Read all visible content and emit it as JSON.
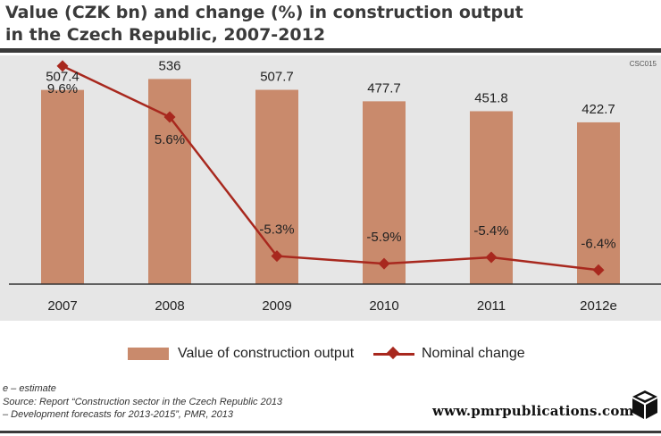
{
  "header": {
    "title_line1": "Value (CZK bn) and change (%) in construction output",
    "title_line2": "in the Czech Republic, 2007-2012",
    "code": "CSC015"
  },
  "chart_data": {
    "type": "bar",
    "categories": [
      "2007",
      "2008",
      "2009",
      "2010",
      "2011",
      "2012e"
    ],
    "series": [
      {
        "name": "Value of construction output",
        "type": "bar",
        "values": [
          507.4,
          536,
          507.7,
          477.7,
          451.8,
          422.7
        ],
        "labels": [
          "507.4",
          "536",
          "507.7",
          "477.7",
          "451.8",
          "422.7"
        ],
        "color": "#c98a6c"
      },
      {
        "name": "Nominal change",
        "type": "line",
        "values": [
          9.6,
          5.6,
          -5.3,
          -5.9,
          -5.4,
          -6.4
        ],
        "labels": [
          "9.6%",
          "5.6%",
          "-5.3%",
          "-5.9%",
          "-5.4%",
          "-6.4%"
        ],
        "color": "#a8281e",
        "marker": "diamond"
      }
    ],
    "bar_axis_range": [
      0,
      600
    ],
    "line_axis_range": [
      -7.5,
      10.5
    ],
    "grid": false,
    "legend_position": "bottom"
  },
  "legend": {
    "bar_label": "Value of construction output",
    "line_label": "Nominal change"
  },
  "footer": {
    "note": "e – estimate",
    "source_line1": "Source: Report “Construction sector in the Czech Republic 2013",
    "source_line2": "– Development forecasts for 2013-2015”, PMR, 2013",
    "brand": "www.pmrpublications.com"
  }
}
